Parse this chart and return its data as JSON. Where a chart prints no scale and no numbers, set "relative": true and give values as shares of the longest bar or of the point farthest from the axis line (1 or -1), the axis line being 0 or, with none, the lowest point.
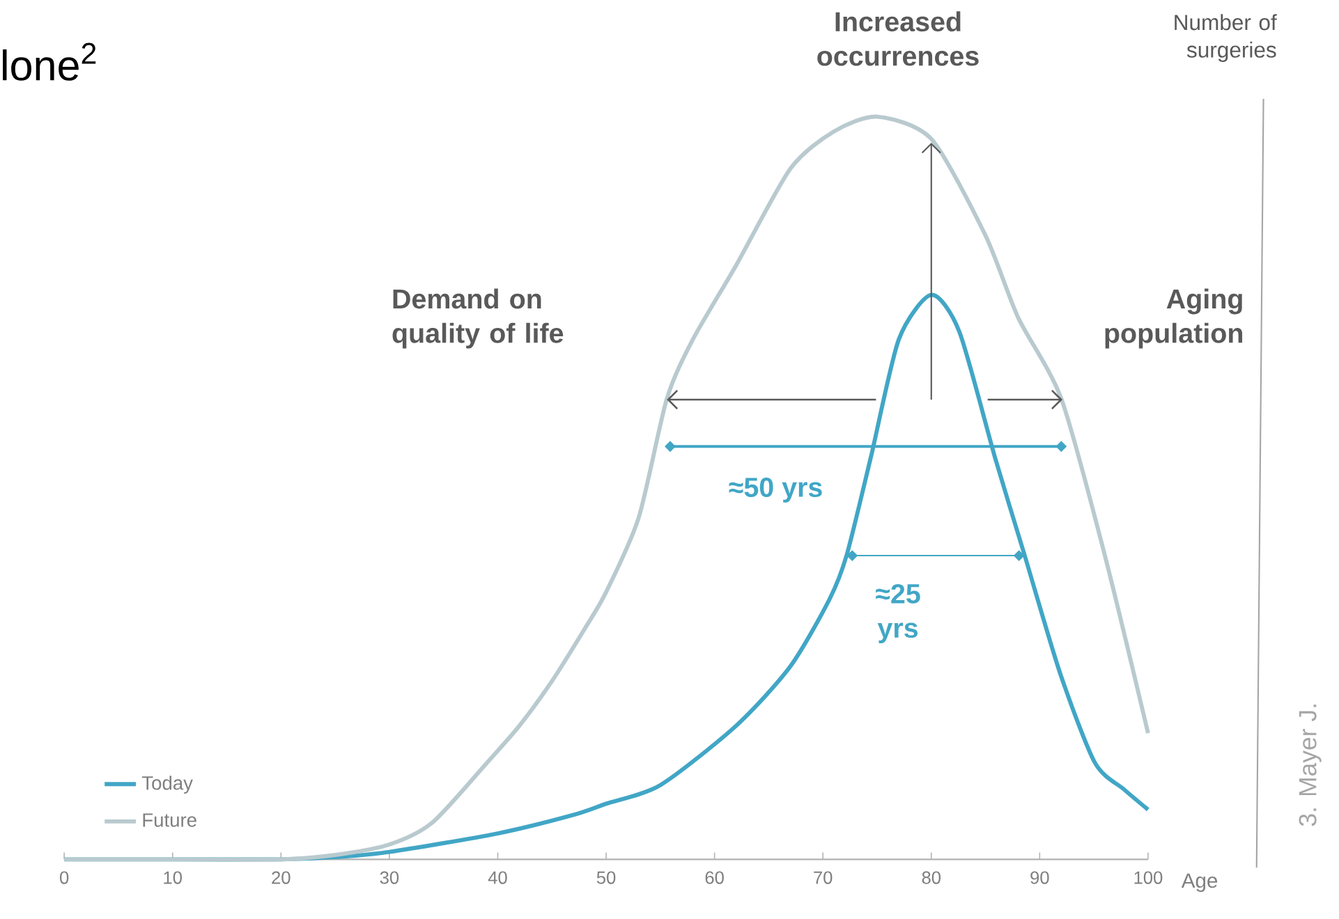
{
  "chart_data": {
    "type": "line",
    "title": "lone$^{2}$",
    "xlabel": "Age",
    "ylabel": "Number of surgeries",
    "relative": true,
    "xlim": [
      0,
      100
    ],
    "xticks": [
      0,
      10,
      20,
      30,
      40,
      50,
      60,
      70,
      80,
      90,
      100
    ],
    "legend": "bottom left",
    "marker": "none",
    "line_style": "solid",
    "annotations": [
      "Increased occurrences",
      "Demand on quality of life",
      "Aging population",
      "≈50 yrs",
      "≈25 yrs",
      "3. Mayer J."
    ],
    "series": [
      {
        "name": "Today",
        "color": "#41a6c6",
        "x": [
          0,
          10,
          20,
          25,
          30,
          40,
          47,
          50,
          55,
          62,
          67,
          70.6,
          72.2,
          74.4,
          77,
          80,
          82.6,
          85.9,
          88.6,
          91.9,
          95.1,
          97.8,
          100
        ],
        "values": [
          0,
          0,
          0,
          0.003,
          0.01,
          0.035,
          0.06,
          0.075,
          0.1,
          0.18,
          0.26,
          0.35,
          0.41,
          0.54,
          0.7,
          0.76,
          0.71,
          0.54,
          0.41,
          0.25,
          0.13,
          0.094,
          0.067
        ]
      },
      {
        "name": "Future",
        "color": "#b9cacf",
        "x": [
          0,
          10,
          20,
          25,
          30,
          34,
          39,
          42,
          45,
          48,
          50,
          53,
          55.6,
          58,
          62,
          67,
          71,
          75,
          80,
          85,
          88,
          92,
          96,
          100
        ],
        "values": [
          0,
          0,
          0,
          0.006,
          0.02,
          0.05,
          0.13,
          0.18,
          0.24,
          0.31,
          0.36,
          0.46,
          0.62,
          0.7,
          0.8,
          0.93,
          0.98,
          1,
          0.97,
          0.84,
          0.73,
          0.62,
          0.41,
          0.17
        ]
      }
    ]
  }
}
